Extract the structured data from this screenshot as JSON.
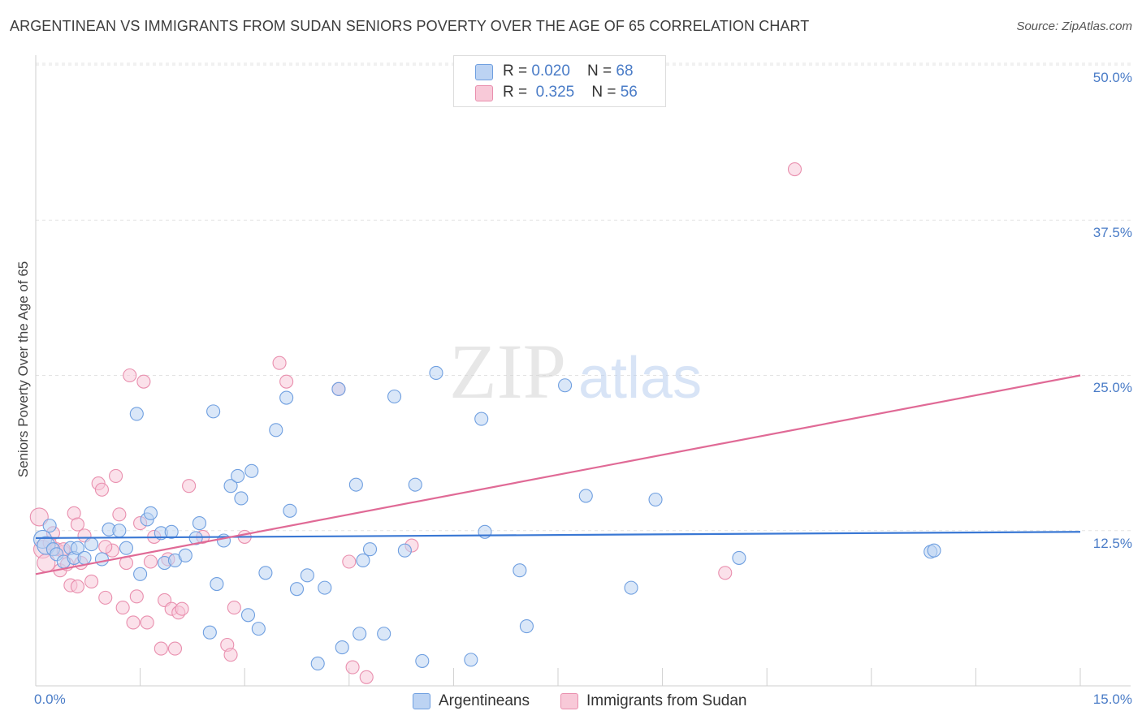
{
  "title": "ARGENTINEAN VS IMMIGRANTS FROM SUDAN SENIORS POVERTY OVER THE AGE OF 65 CORRELATION CHART",
  "source": "Source: ZipAtlas.com",
  "watermark": {
    "zip": "ZIP",
    "atlas": "atlas"
  },
  "legend": {
    "rows": [
      {
        "r_label": "R = ",
        "r_value": "0.020",
        "n_label": "N = ",
        "n_value": "68"
      },
      {
        "r_label": "R = ",
        "r_value": "0.325",
        "n_label": "N = ",
        "n_value": "56"
      }
    ]
  },
  "chart_data": {
    "type": "scatter",
    "title": "ARGENTINEAN VS IMMIGRANTS FROM SUDAN SENIORS POVERTY OVER THE AGE OF 65 CORRELATION CHART",
    "xlabel": "",
    "ylabel": "Seniors Poverty Over the Age of 65",
    "xlim": [
      0,
      15
    ],
    "ylim": [
      0,
      50
    ],
    "x_tick_labels": [
      "0.0%",
      "15.0%"
    ],
    "y_tick_labels": [
      "12.5%",
      "25.0%",
      "37.5%",
      "50.0%"
    ],
    "y_ticks": [
      12.5,
      25.0,
      37.5,
      50.0
    ],
    "grid": true,
    "legend_position": "top-center",
    "series": [
      {
        "name": "Argentineans",
        "color": "#6f9fe0",
        "fill": "#bcd3f3",
        "trend": {
          "x": [
            0,
            15
          ],
          "y": [
            11.9,
            12.4
          ]
        },
        "points": [
          [
            0.1,
            11.8
          ],
          [
            0.15,
            11.3
          ],
          [
            0.2,
            12.9
          ],
          [
            0.25,
            11.0
          ],
          [
            0.3,
            10.6
          ],
          [
            0.4,
            10.0
          ],
          [
            0.5,
            11.1
          ],
          [
            0.55,
            10.3
          ],
          [
            0.6,
            11.1
          ],
          [
            0.7,
            10.3
          ],
          [
            0.8,
            11.4
          ],
          [
            0.95,
            10.2
          ],
          [
            1.05,
            12.6
          ],
          [
            1.2,
            12.5
          ],
          [
            1.3,
            11.1
          ],
          [
            1.45,
            21.9
          ],
          [
            1.5,
            9.0
          ],
          [
            1.6,
            13.4
          ],
          [
            1.65,
            13.9
          ],
          [
            1.8,
            12.3
          ],
          [
            1.85,
            9.9
          ],
          [
            1.95,
            12.4
          ],
          [
            2.0,
            10.1
          ],
          [
            2.15,
            10.5
          ],
          [
            2.3,
            11.9
          ],
          [
            2.35,
            13.1
          ],
          [
            2.5,
            4.3
          ],
          [
            2.55,
            22.1
          ],
          [
            2.6,
            8.2
          ],
          [
            2.7,
            11.7
          ],
          [
            2.8,
            16.1
          ],
          [
            2.9,
            16.9
          ],
          [
            2.95,
            15.1
          ],
          [
            3.05,
            5.7
          ],
          [
            3.1,
            17.3
          ],
          [
            3.2,
            4.6
          ],
          [
            3.3,
            9.1
          ],
          [
            3.45,
            20.6
          ],
          [
            3.6,
            23.2
          ],
          [
            3.65,
            14.1
          ],
          [
            3.75,
            7.8
          ],
          [
            3.9,
            8.9
          ],
          [
            4.05,
            1.8
          ],
          [
            4.15,
            7.9
          ],
          [
            4.35,
            23.9
          ],
          [
            4.4,
            3.1
          ],
          [
            4.6,
            16.2
          ],
          [
            4.65,
            4.2
          ],
          [
            4.7,
            10.1
          ],
          [
            4.8,
            11.0
          ],
          [
            5.0,
            4.2
          ],
          [
            5.15,
            23.3
          ],
          [
            5.3,
            10.9
          ],
          [
            5.45,
            16.2
          ],
          [
            5.55,
            2.0
          ],
          [
            5.75,
            25.2
          ],
          [
            6.25,
            2.1
          ],
          [
            6.4,
            21.5
          ],
          [
            6.45,
            12.4
          ],
          [
            6.95,
            9.3
          ],
          [
            7.05,
            4.8
          ],
          [
            7.6,
            24.2
          ],
          [
            7.9,
            15.3
          ],
          [
            8.55,
            7.9
          ],
          [
            8.9,
            15.0
          ],
          [
            10.1,
            10.3
          ],
          [
            12.85,
            10.8
          ],
          [
            12.9,
            10.9
          ]
        ]
      },
      {
        "name": "Immigrants from Sudan",
        "color": "#e98fae",
        "fill": "#f8c9d8",
        "trend": {
          "x": [
            0,
            15
          ],
          "y": [
            9.0,
            25.0
          ]
        },
        "points": [
          [
            0.05,
            13.6
          ],
          [
            0.1,
            11.0
          ],
          [
            0.15,
            9.9
          ],
          [
            0.2,
            11.5
          ],
          [
            0.3,
            11.0
          ],
          [
            0.35,
            9.3
          ],
          [
            0.4,
            10.8
          ],
          [
            0.45,
            9.8
          ],
          [
            0.5,
            8.1
          ],
          [
            0.55,
            13.9
          ],
          [
            0.6,
            8.0
          ],
          [
            0.65,
            9.9
          ],
          [
            0.7,
            12.1
          ],
          [
            0.8,
            8.4
          ],
          [
            0.9,
            16.3
          ],
          [
            0.95,
            15.8
          ],
          [
            1.0,
            7.1
          ],
          [
            1.1,
            10.9
          ],
          [
            1.15,
            16.9
          ],
          [
            1.2,
            13.8
          ],
          [
            1.25,
            6.3
          ],
          [
            1.3,
            9.9
          ],
          [
            1.35,
            25.0
          ],
          [
            1.4,
            5.1
          ],
          [
            1.45,
            7.2
          ],
          [
            1.5,
            13.1
          ],
          [
            1.55,
            24.5
          ],
          [
            1.6,
            5.1
          ],
          [
            1.65,
            10.0
          ],
          [
            1.7,
            12.0
          ],
          [
            1.8,
            3.0
          ],
          [
            1.85,
            6.9
          ],
          [
            1.9,
            10.2
          ],
          [
            1.95,
            6.2
          ],
          [
            2.0,
            3.0
          ],
          [
            2.05,
            5.9
          ],
          [
            2.1,
            6.2
          ],
          [
            2.2,
            16.1
          ],
          [
            2.4,
            12.0
          ],
          [
            2.75,
            3.3
          ],
          [
            2.8,
            2.5
          ],
          [
            2.85,
            6.3
          ],
          [
            3.0,
            12.0
          ],
          [
            3.5,
            26.0
          ],
          [
            3.6,
            24.5
          ],
          [
            4.35,
            23.9
          ],
          [
            4.5,
            10.0
          ],
          [
            4.55,
            1.5
          ],
          [
            4.75,
            0.7
          ],
          [
            5.4,
            11.3
          ],
          [
            10.9,
            41.6
          ],
          [
            9.9,
            9.1
          ],
          [
            0.4,
            11.0
          ],
          [
            0.25,
            12.3
          ],
          [
            0.6,
            13.0
          ],
          [
            1.0,
            11.2
          ]
        ]
      }
    ]
  },
  "bottom_legend": {
    "items": [
      {
        "label": "Argentineans"
      },
      {
        "label": "Immigrants from Sudan"
      }
    ]
  },
  "colors": {
    "blue_stroke": "#6f9fe0",
    "blue_fill": "#bcd3f3",
    "pink_stroke": "#e98fae",
    "pink_fill": "#f8c9d8",
    "blue_line": "#3a78d4",
    "pink_line": "#e06a96",
    "tick_text": "#4a7cc7"
  }
}
